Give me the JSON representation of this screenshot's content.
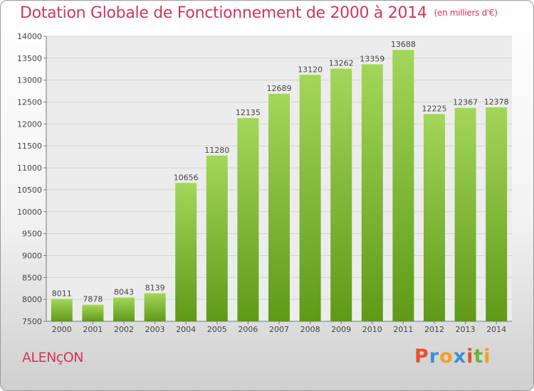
{
  "title": "Dotation Globale de Fonctionnement de 2000 à 2014",
  "unit": "(en milliers d'€)",
  "city": "ALENçON",
  "brand": {
    "letters": [
      "P",
      "r",
      "o",
      "x",
      "i",
      "t",
      "i"
    ],
    "colors": [
      "#e8502a",
      "#3f8fd2",
      "#f0a020",
      "#3f8fd2",
      "#e8502a",
      "#6cb23c",
      "#f0a020"
    ]
  },
  "colors": {
    "accent": "#d0365a",
    "bar_top": "#a3d65a",
    "bar_bottom": "#5f9a17"
  },
  "chart_data": {
    "type": "bar",
    "categories": [
      "2000",
      "2001",
      "2002",
      "2003",
      "2004",
      "2005",
      "2006",
      "2007",
      "2008",
      "2009",
      "2010",
      "2011",
      "2012",
      "2013",
      "2014"
    ],
    "values": [
      8011,
      7878,
      8043,
      8139,
      10656,
      11280,
      12135,
      12689,
      13120,
      13262,
      13359,
      13688,
      12225,
      12367,
      12378
    ],
    "ylim": [
      7500,
      14000
    ],
    "yticks": [
      7500,
      8000,
      8500,
      9000,
      9500,
      10000,
      10500,
      11000,
      11500,
      12000,
      12500,
      13000,
      13500,
      14000
    ],
    "grid": true
  }
}
